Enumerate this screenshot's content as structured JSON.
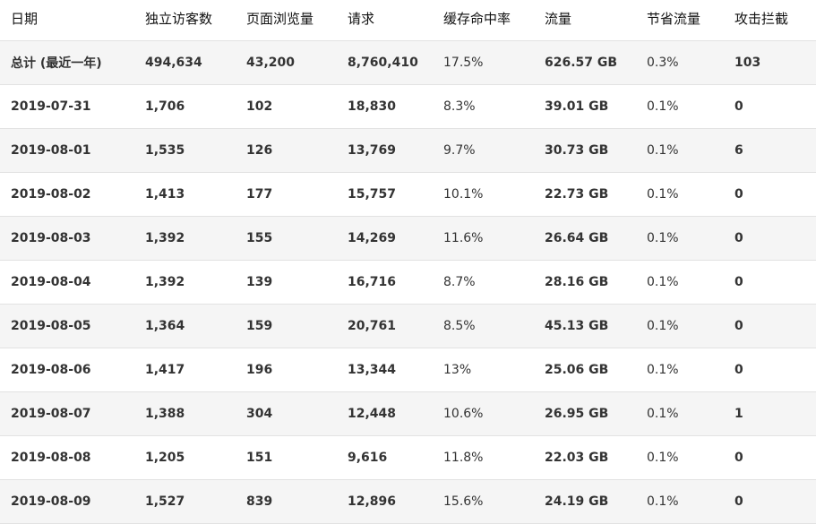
{
  "table": {
    "headers": [
      "日期",
      "独立访客数",
      "页面浏览量",
      "请求",
      "缓存命中率",
      "流量",
      "节省流量",
      "攻击拦截"
    ],
    "rows": [
      [
        "总计 (最近一年)",
        "494,634",
        "43,200",
        "8,760,410",
        "17.5%",
        "626.57 GB",
        "0.3%",
        "103"
      ],
      [
        "2019-07-31",
        "1,706",
        "102",
        "18,830",
        "8.3%",
        "39.01 GB",
        "0.1%",
        "0"
      ],
      [
        "2019-08-01",
        "1,535",
        "126",
        "13,769",
        "9.7%",
        "30.73 GB",
        "0.1%",
        "6"
      ],
      [
        "2019-08-02",
        "1,413",
        "177",
        "15,757",
        "10.1%",
        "22.73 GB",
        "0.1%",
        "0"
      ],
      [
        "2019-08-03",
        "1,392",
        "155",
        "14,269",
        "11.6%",
        "26.64 GB",
        "0.1%",
        "0"
      ],
      [
        "2019-08-04",
        "1,392",
        "139",
        "16,716",
        "8.7%",
        "28.16 GB",
        "0.1%",
        "0"
      ],
      [
        "2019-08-05",
        "1,364",
        "159",
        "20,761",
        "8.5%",
        "45.13 GB",
        "0.1%",
        "0"
      ],
      [
        "2019-08-06",
        "1,417",
        "196",
        "13,344",
        "13%",
        "25.06 GB",
        "0.1%",
        "0"
      ],
      [
        "2019-08-07",
        "1,388",
        "304",
        "12,448",
        "10.6%",
        "26.95 GB",
        "0.1%",
        "1"
      ],
      [
        "2019-08-08",
        "1,205",
        "151",
        "9,616",
        "11.8%",
        "22.03 GB",
        "0.1%",
        "0"
      ],
      [
        "2019-08-09",
        "1,527",
        "839",
        "12,896",
        "15.6%",
        "24.19 GB",
        "0.1%",
        "0"
      ]
    ]
  }
}
